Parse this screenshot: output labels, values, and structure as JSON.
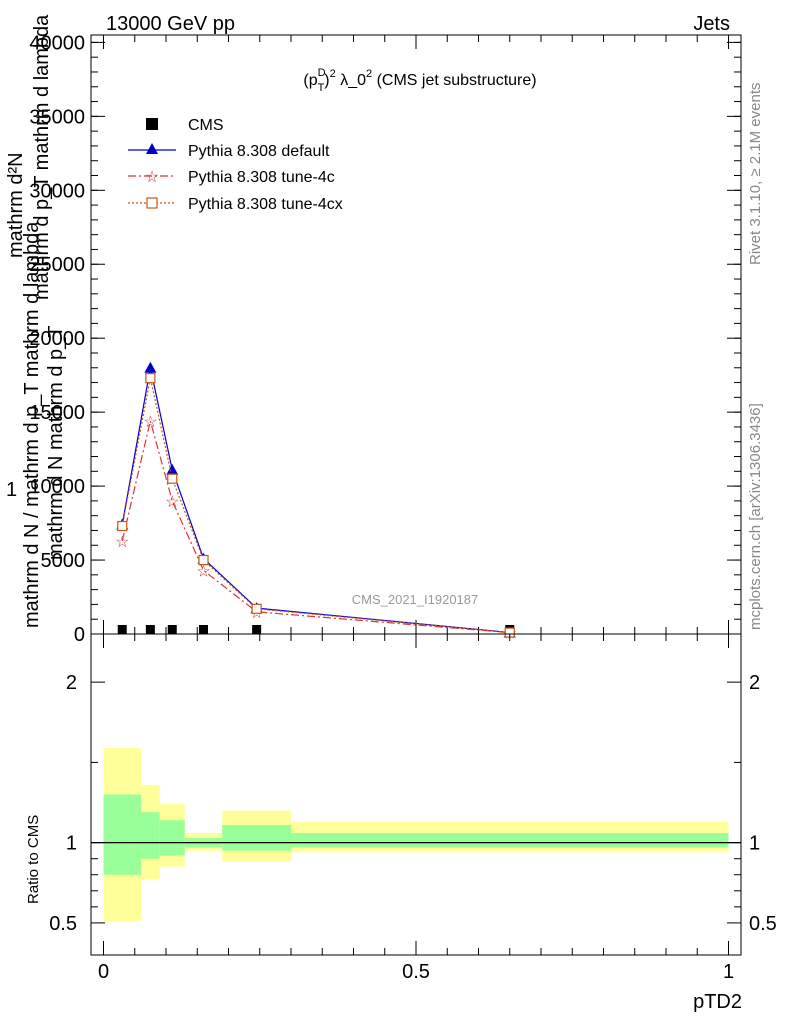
{
  "header": {
    "left": "13000 GeV pp",
    "right": "Jets"
  },
  "side": {
    "rivet": "Rivet 3.1.10, ≥ 2.1M events",
    "mcplots": "mcplots.cern.ch [arXiv:1306.3436]"
  },
  "chart_data": [
    {
      "type": "line",
      "title_main": "(p",
      "title_sup1": "D",
      "title_sub1": "T",
      "title_sup2": "2",
      "title_rest": " λ_0",
      "title_sup3": "2",
      "title_tail": " (CMS jet substructure)",
      "watermark": "CMS_2021_I1920187",
      "ylabel_main": "mathrm d N / mathrm d p_T mathrm d lambda",
      "ylabel_frac_num": "mathrm d²N",
      "ylabel_frac_den": "mathrm d p_T mathrm d lambda",
      "ylabel_one": "1",
      "ylabel_inner": "mathrm d N  mathrm d p_T",
      "ylim": [
        0,
        40500
      ],
      "xlim": [
        -0.02,
        1.02
      ],
      "yticks": [
        0,
        5000,
        10000,
        15000,
        20000,
        25000,
        30000,
        35000,
        40000
      ],
      "ytick_labels": [
        "0",
        "5000",
        "10000",
        "15000",
        "20000",
        "25000",
        "30000",
        "35000",
        "40000"
      ],
      "legend_position": "top-left",
      "series": [
        {
          "name": "CMS",
          "color": "#000000",
          "marker": "square",
          "x": [
            0.03,
            0.075,
            0.11,
            0.16,
            0.245,
            0.65
          ],
          "y": [
            0,
            0,
            0,
            0,
            0,
            0
          ]
        },
        {
          "name": "Pythia 8.308 default",
          "color": "#0000cc",
          "marker": "triangle",
          "x": [
            0.03,
            0.075,
            0.11,
            0.16,
            0.245,
            0.65
          ],
          "y": [
            7400,
            18000,
            11100,
            5100,
            1750,
            100
          ]
        },
        {
          "name": "Pythia 8.308 tune-4c",
          "color": "#dd3333",
          "marker": "star",
          "x": [
            0.03,
            0.075,
            0.11,
            0.16,
            0.245,
            0.65
          ],
          "y": [
            6300,
            14400,
            9000,
            4300,
            1500,
            90
          ]
        },
        {
          "name": "Pythia 8.308 tune-4cx",
          "color": "#cc5511",
          "marker": "open-square",
          "x": [
            0.03,
            0.075,
            0.11,
            0.16,
            0.245,
            0.65
          ],
          "y": [
            7300,
            17300,
            10500,
            5000,
            1700,
            95
          ]
        }
      ]
    },
    {
      "type": "area",
      "ylabel": "Ratio to CMS",
      "xlabel": "pTD2",
      "ylim": [
        0.3,
        2.3
      ],
      "xlim": [
        -0.02,
        1.02
      ],
      "yticks": [
        0.5,
        1,
        2
      ],
      "ytick_labels": [
        "0.5",
        "1",
        "2"
      ],
      "xticks": [
        0,
        0.5,
        1
      ],
      "xtick_labels": [
        "0",
        "0.5",
        "1"
      ],
      "reference": 1,
      "bins": [
        {
          "x0": 0.0,
          "x1": 0.06,
          "inner": [
            0.8,
            1.3
          ],
          "outer": [
            0.51,
            1.59
          ]
        },
        {
          "x0": 0.06,
          "x1": 0.09,
          "inner": [
            0.9,
            1.19
          ],
          "outer": [
            0.77,
            1.36
          ]
        },
        {
          "x0": 0.09,
          "x1": 0.13,
          "inner": [
            0.92,
            1.14
          ],
          "outer": [
            0.85,
            1.24
          ]
        },
        {
          "x0": 0.13,
          "x1": 0.19,
          "inner": [
            0.97,
            1.03
          ],
          "outer": [
            0.95,
            1.06
          ]
        },
        {
          "x0": 0.19,
          "x1": 0.3,
          "inner": [
            0.95,
            1.11
          ],
          "outer": [
            0.88,
            1.2
          ]
        },
        {
          "x0": 0.3,
          "x1": 1.0,
          "inner": [
            0.97,
            1.06
          ],
          "outer": [
            0.94,
            1.13
          ]
        }
      ],
      "colors": {
        "inner": "#99ff99",
        "outer": "#ffff99"
      }
    }
  ]
}
